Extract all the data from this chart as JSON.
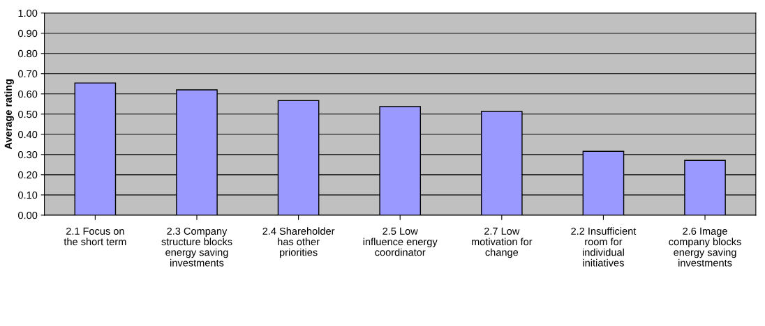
{
  "chart_data": {
    "type": "bar",
    "ylabel": "Average rating",
    "categories": [
      "2.1 Focus on the short term",
      "2.3 Company structure blocks energy saving investments",
      "2.4 Shareholder has other priorities",
      "2.5 Low influence energy coordinator",
      "2.7 Low motivation for change",
      "2.2 Insufficient room for individual initiatives",
      "2.6 Image company blocks energy saving investments"
    ],
    "values": [
      0.654,
      0.62,
      0.567,
      0.537,
      0.513,
      0.316,
      0.271
    ],
    "color": "#9999ff",
    "ylim": [
      0,
      1
    ],
    "yticks": [
      {
        "value": 0,
        "label": "0.00"
      },
      {
        "value": 0.1,
        "label": "0.10"
      },
      {
        "value": 0.2,
        "label": "0.20"
      },
      {
        "value": 0.3,
        "label": "0.30"
      },
      {
        "value": 0.4,
        "label": "0.40"
      },
      {
        "value": 0.5,
        "label": "0.50"
      },
      {
        "value": 0.6,
        "label": "0.60"
      },
      {
        "value": 0.7,
        "label": "0.70"
      },
      {
        "value": 0.8,
        "label": "0.80"
      },
      {
        "value": 0.9,
        "label": "0.90"
      },
      {
        "value": 1,
        "label": "1.00"
      }
    ],
    "grid": "y"
  }
}
